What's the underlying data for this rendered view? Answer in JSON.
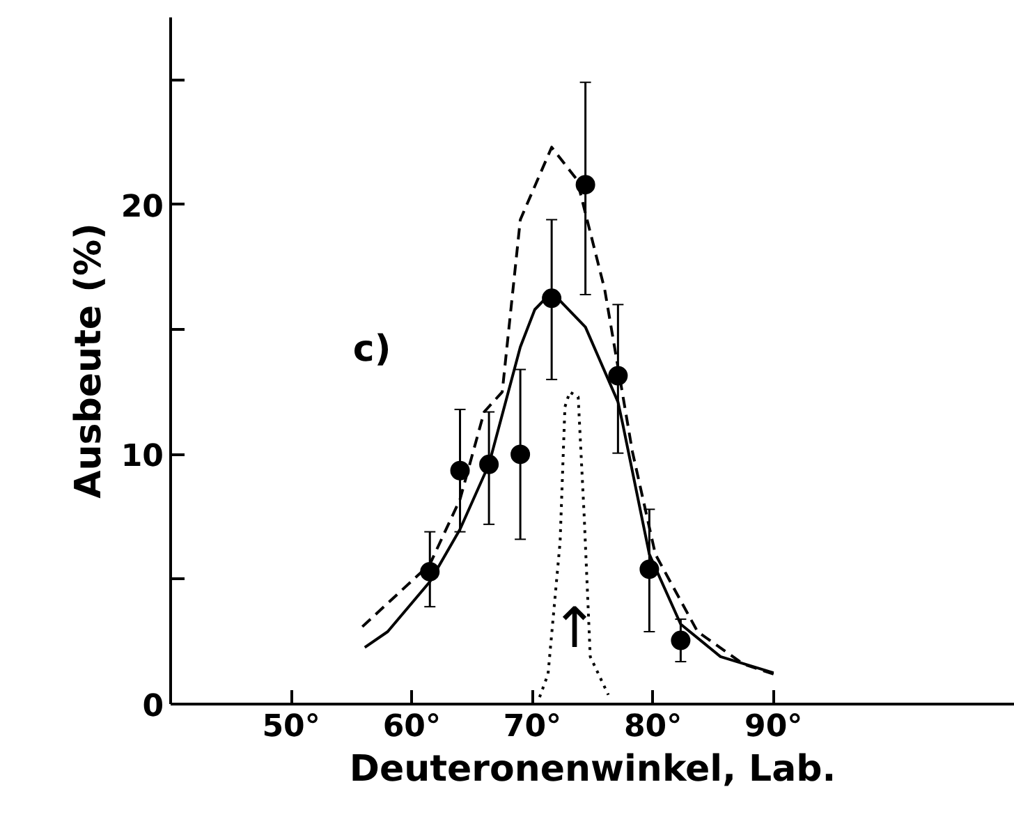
{
  "chart_data": {
    "type": "scatter",
    "xlabel": "Deuteronenwinkel, Lab.",
    "ylabel": "Ausbeute (%)",
    "xlim": [
      40,
      110
    ],
    "ylim": [
      0,
      27.5
    ],
    "xticks": [
      {
        "value": 50,
        "label": "50°"
      },
      {
        "value": 60,
        "label": "60°"
      },
      {
        "value": 70,
        "label": "70°"
      },
      {
        "value": 80,
        "label": "80°"
      },
      {
        "value": 90,
        "label": "90°"
      }
    ],
    "yticks": [
      0,
      {
        "value": 5,
        "label": null
      },
      10,
      {
        "value": 15,
        "label": null
      },
      20,
      {
        "value": 25,
        "label": null
      }
    ],
    "grid": false,
    "annotations": [
      "c)",
      "↑"
    ],
    "series": [
      {
        "color": "#000000",
        "marker": "circle",
        "x": [
          61.5,
          64.0,
          66.4,
          69.0,
          71.6,
          74.4,
          77.1,
          79.7,
          82.3
        ],
        "values": [
          5.3,
          9.35,
          9.6,
          10.0,
          16.25,
          20.8,
          13.15,
          5.4,
          2.55
        ],
        "errors": [
          [
            3.9,
            6.9
          ],
          [
            6.9,
            11.8
          ],
          [
            7.2,
            11.7
          ],
          [
            6.6,
            13.4
          ],
          [
            13.0,
            19.4
          ],
          [
            16.4,
            24.9
          ],
          [
            10.05,
            16.0
          ],
          [
            2.9,
            7.8
          ],
          [
            1.7,
            3.4
          ]
        ]
      },
      {
        "type": "line",
        "color": "#000000",
        "line_style": "solid",
        "marker": "none",
        "x": [
          56.1,
          58,
          61.5,
          64,
          66.4,
          69.0,
          70.2,
          71.6,
          74.4,
          77.1,
          77.5,
          79.7,
          82.3,
          85.6,
          90
        ],
        "values": [
          2.27,
          2.9,
          4.9,
          7.0,
          9.6,
          14.3,
          15.8,
          16.5,
          15.1,
          12.1,
          11.2,
          6.0,
          3.2,
          1.9,
          1.25
        ]
      },
      {
        "type": "line",
        "color": "#000000",
        "line_style": "dashed",
        "marker": "none",
        "x": [
          55.9,
          61.5,
          64,
          66,
          67.5,
          69,
          71.6,
          73.7,
          76,
          78.3,
          80.2,
          83.7,
          87.5,
          90
        ],
        "values": [
          3.1,
          5.6,
          8.2,
          11.7,
          12.5,
          19.4,
          22.3,
          21,
          16.6,
          10.1,
          6.0,
          2.9,
          1.6,
          1.2
        ]
      },
      {
        "type": "line",
        "color": "#000000",
        "line_style": "dotted",
        "marker": "none",
        "x": [
          70.6,
          71.3,
          72.3,
          72.7,
          73.1,
          73.8,
          74.3,
          74.8,
          76.3
        ],
        "values": [
          0.28,
          1.2,
          6.5,
          11.9,
          12.5,
          12.3,
          7.5,
          1.9,
          0.37
        ]
      }
    ]
  }
}
